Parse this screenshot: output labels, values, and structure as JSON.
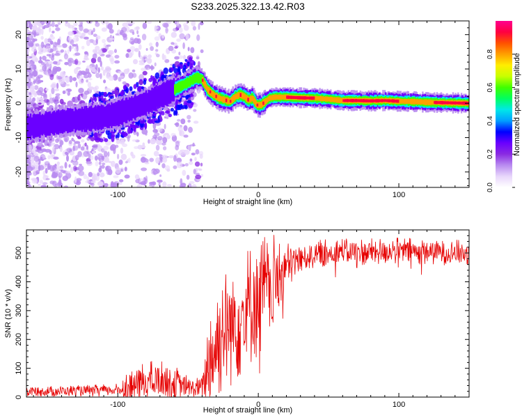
{
  "title": "S233.2025.322.13.42.R03",
  "chart_data": [
    {
      "type": "heatmap",
      "name": "spectrogram",
      "xlabel": "Height of straight line (km)",
      "ylabel": "Frequency (Hz)",
      "xlim": [
        -165,
        150
      ],
      "ylim": [
        -24.5,
        24
      ],
      "x_ticks": [
        -100,
        0,
        100
      ],
      "y_ticks": [
        -20,
        -10,
        0,
        10,
        20
      ],
      "ridge": {
        "x": [
          -165,
          -150,
          -135,
          -120,
          -110,
          -100,
          -90,
          -80,
          -70,
          -62,
          -55,
          -48,
          -44,
          -40,
          -36,
          -32,
          -28,
          -24,
          -20,
          -16,
          -13,
          -10,
          -7,
          -4,
          -1,
          2,
          5,
          8,
          12,
          20,
          30,
          40,
          50,
          60,
          70,
          80,
          90,
          100,
          110,
          120,
          130,
          140,
          150
        ],
        "y": [
          -7,
          -6,
          -5,
          -4.5,
          -4,
          -3,
          -1.5,
          0,
          2,
          3.5,
          5,
          6.5,
          7.5,
          7,
          4,
          2.5,
          1.5,
          1,
          0.5,
          2,
          2.5,
          2,
          1,
          1.5,
          -0.5,
          -0.5,
          0.5,
          1.5,
          1.8,
          1.8,
          1.6,
          1.5,
          1.2,
          0.8,
          0.8,
          0.7,
          0.8,
          0.6,
          0.5,
          0.3,
          0.2,
          0.1,
          0
        ]
      },
      "colorbar": {
        "label": "Normalized spectral amplitude",
        "ticks": [
          0.0,
          0.2,
          0.4,
          0.6,
          0.8
        ],
        "range": [
          0,
          1
        ],
        "colors": [
          "#ffffff",
          "#e8d6fb",
          "#b98cf0",
          "#8a2be2",
          "#6a00ff",
          "#0000ff",
          "#00a0ff",
          "#00e8e8",
          "#00ff60",
          "#40ff00",
          "#c8ff00",
          "#ffee00",
          "#ffa000",
          "#ff5000",
          "#ff0040",
          "#ff0090"
        ]
      }
    },
    {
      "type": "line",
      "name": "snr",
      "xlabel": "Height of straight line (km)",
      "ylabel": "SNR (10 * v/v)",
      "xlim": [
        -165,
        150
      ],
      "ylim": [
        0,
        580
      ],
      "x_ticks": [
        -100,
        0,
        100
      ],
      "y_ticks": [
        0,
        100,
        200,
        300,
        400,
        500
      ],
      "color": "#e60000",
      "trend": {
        "x": [
          -165,
          -150,
          -120,
          -100,
          -90,
          -80,
          -70,
          -60,
          -50,
          -45,
          -40,
          -35,
          -30,
          -25,
          -20,
          -15,
          -10,
          -5,
          0,
          5,
          10,
          15,
          20,
          25,
          30,
          35,
          40,
          50,
          60,
          80,
          100,
          120,
          150
        ],
        "y": [
          22,
          20,
          22,
          25,
          40,
          55,
          60,
          45,
          35,
          30,
          35,
          120,
          180,
          230,
          250,
          270,
          300,
          320,
          350,
          370,
          380,
          420,
          450,
          470,
          480,
          490,
          495,
          500,
          505,
          505,
          508,
          505,
          500
        ]
      },
      "noise": {
        "x": [
          -165,
          -100,
          -90,
          -60,
          -50,
          -40,
          -35,
          -20,
          0,
          15,
          20,
          30,
          150
        ],
        "amplitude": [
          18,
          22,
          70,
          70,
          40,
          40,
          200,
          220,
          220,
          160,
          90,
          50,
          45
        ]
      }
    }
  ]
}
